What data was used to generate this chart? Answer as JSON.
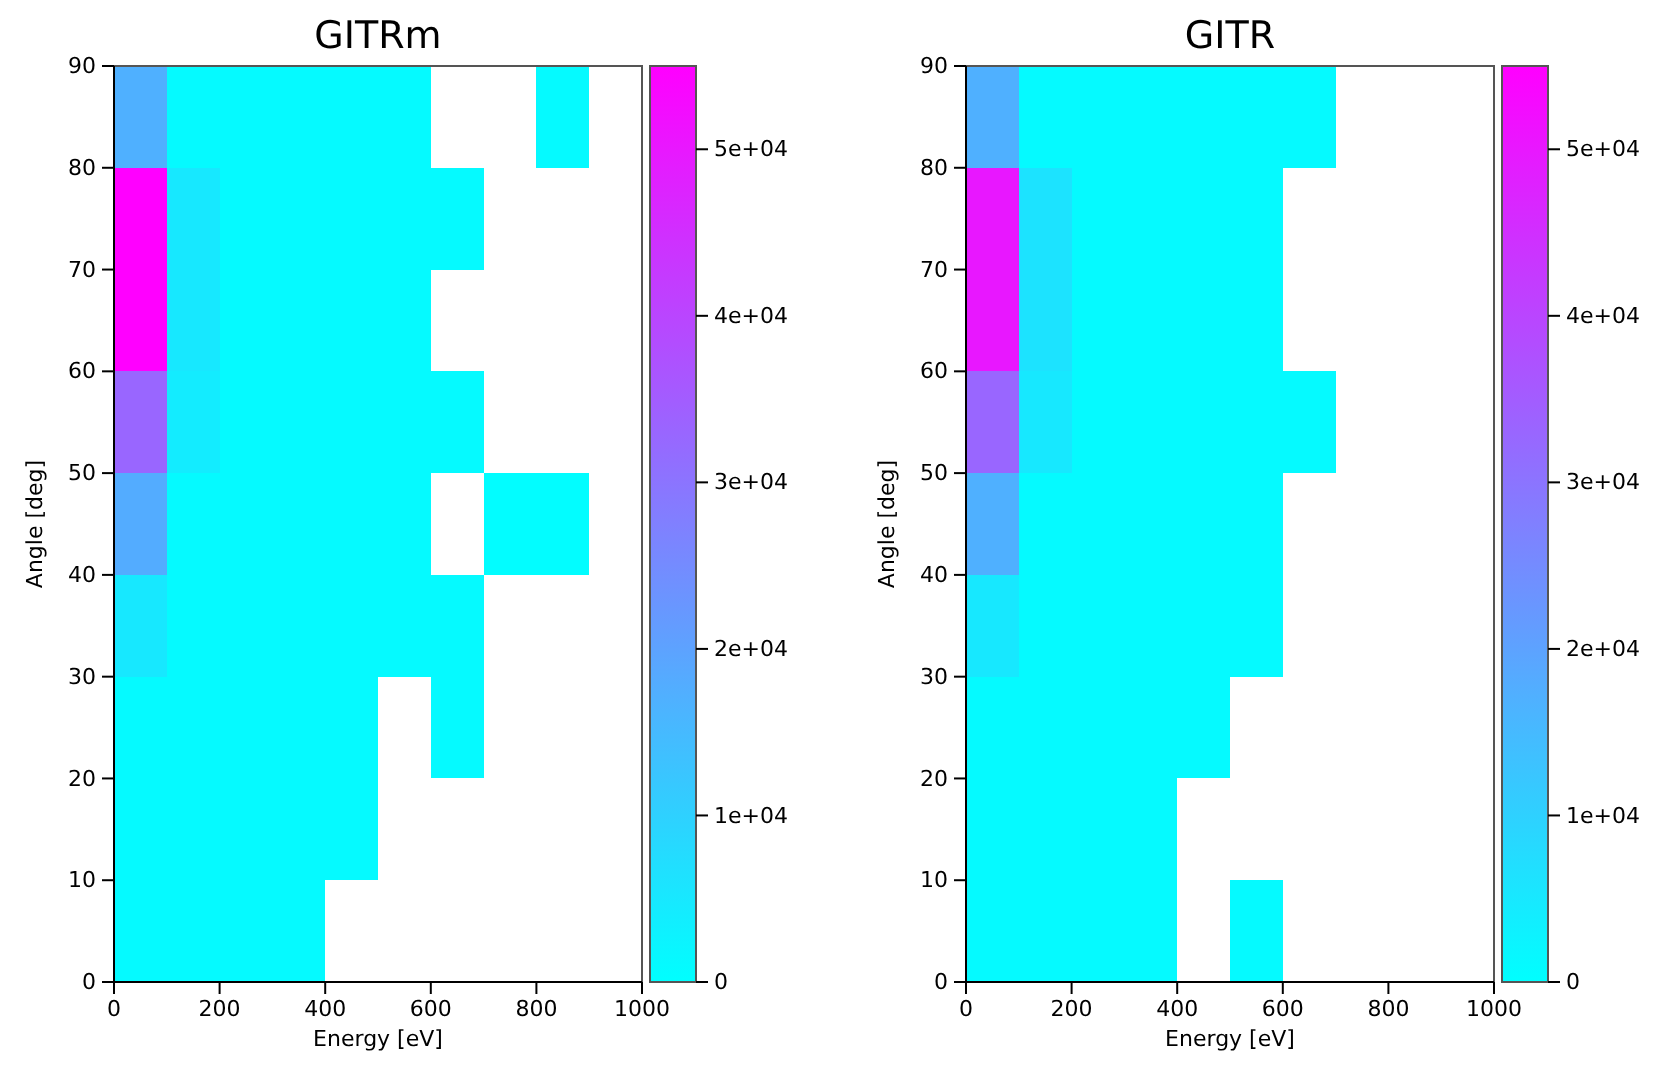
{
  "chart_data": [
    {
      "type": "heatmap",
      "title": "GITRm",
      "xlabel": "Energy [eV]",
      "ylabel": "Angle [deg]",
      "x": [
        50,
        150,
        250,
        350,
        450,
        550,
        650,
        750,
        850,
        950
      ],
      "y": [
        85,
        75,
        65,
        55,
        45,
        35,
        25,
        15,
        5
      ],
      "cells": [
        [
          17000,
          1000,
          1000,
          1000,
          1000,
          1000,
          null,
          null,
          1000,
          null
        ],
        [
          55000,
          5000,
          1000,
          1000,
          1000,
          1000,
          1000,
          null,
          null,
          null
        ],
        [
          55000,
          5000,
          1000,
          1000,
          1000,
          1000,
          null,
          null,
          null,
          null
        ],
        [
          33000,
          4000,
          1000,
          1000,
          1000,
          1000,
          1000,
          null,
          null,
          null
        ],
        [
          18000,
          1000,
          1000,
          1000,
          1000,
          1000,
          null,
          500,
          500,
          null
        ],
        [
          5000,
          1000,
          1000,
          1000,
          1000,
          1000,
          1000,
          null,
          null,
          null
        ],
        [
          1000,
          1000,
          1000,
          1000,
          1000,
          null,
          1000,
          null,
          null,
          null
        ],
        [
          1000,
          1000,
          1000,
          1000,
          1000,
          null,
          null,
          null,
          null,
          null
        ],
        [
          1000,
          1000,
          1000,
          1000,
          null,
          null,
          null,
          null,
          null,
          null
        ]
      ],
      "xlim": [
        0,
        1000
      ],
      "xticks": [
        0,
        200,
        400,
        600,
        800,
        1000
      ],
      "ylim": [
        0,
        90
      ],
      "yticks": [
        0,
        10,
        20,
        30,
        40,
        50,
        60,
        70,
        80,
        90
      ],
      "clim": [
        0,
        55000
      ],
      "cticks": [
        0,
        {
          "value": 10000,
          "label": "1e+04"
        },
        {
          "value": 20000,
          "label": "2e+04"
        },
        {
          "value": 30000,
          "label": "3e+04"
        },
        {
          "value": 40000,
          "label": "4e+04"
        },
        {
          "value": 50000,
          "label": "5e+04"
        }
      ]
    },
    {
      "type": "heatmap",
      "title": "GITR",
      "xlabel": "Energy [eV]",
      "ylabel": "Angle [deg]",
      "x": [
        50,
        150,
        250,
        350,
        450,
        550,
        650
      ],
      "y": [
        85,
        75,
        65,
        55,
        45,
        35,
        25,
        15,
        5
      ],
      "cells": [
        [
          17000,
          1000,
          1000,
          1000,
          1000,
          1000,
          1000
        ],
        [
          50000,
          6000,
          1000,
          1000,
          1000,
          1000,
          null
        ],
        [
          50000,
          6000,
          1000,
          1000,
          1000,
          1000,
          null
        ],
        [
          33000,
          5000,
          1000,
          1000,
          1000,
          1000,
          1000
        ],
        [
          17000,
          1000,
          1000,
          1000,
          1000,
          1000,
          null
        ],
        [
          5000,
          1000,
          1000,
          1000,
          1000,
          1000,
          null
        ],
        [
          1000,
          1000,
          1000,
          1000,
          1000,
          null,
          null
        ],
        [
          1000,
          1000,
          1000,
          1000,
          null,
          null,
          null
        ],
        [
          1000,
          1000,
          1000,
          1000,
          null,
          1000,
          null
        ]
      ],
      "xlim": [
        0,
        1000
      ],
      "xticks": [
        0,
        200,
        400,
        600,
        800,
        1000
      ],
      "ylim": [
        0,
        90
      ],
      "yticks": [
        0,
        10,
        20,
        30,
        40,
        50,
        60,
        70,
        80,
        90
      ],
      "clim": [
        0,
        55000
      ],
      "cticks": [
        0,
        {
          "value": 10000,
          "label": "1e+04"
        },
        {
          "value": 20000,
          "label": "2e+04"
        },
        {
          "value": 30000,
          "label": "3e+04"
        },
        {
          "value": 40000,
          "label": "4e+04"
        },
        {
          "value": 50000,
          "label": "5e+04"
        }
      ]
    }
  ]
}
